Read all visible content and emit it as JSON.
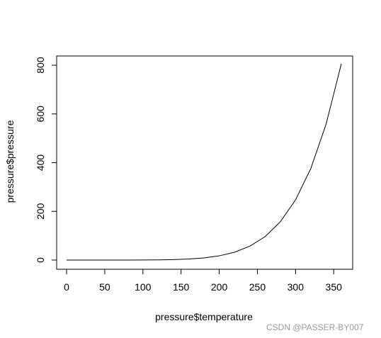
{
  "chart_data": {
    "type": "line",
    "xlabel": "pressure$temperature",
    "ylabel": "pressure$pressure",
    "xlim": [
      0,
      360
    ],
    "ylim": [
      0,
      806
    ],
    "x_ticks": [
      0,
      50,
      100,
      150,
      200,
      250,
      300,
      350
    ],
    "y_ticks": [
      0,
      200,
      400,
      600,
      800
    ],
    "grid": false,
    "x": [
      0,
      20,
      40,
      60,
      80,
      100,
      120,
      140,
      160,
      180,
      200,
      220,
      240,
      260,
      280,
      300,
      320,
      340,
      360
    ],
    "y": [
      0.0002,
      0.0012,
      0.006,
      0.03,
      0.09,
      0.27,
      0.75,
      1.85,
      4.2,
      8.8,
      17.3,
      32.1,
      57.0,
      96.0,
      157.0,
      247.0,
      376.0,
      558.0,
      806.0
    ],
    "line_color": "#000000"
  },
  "watermark": "CSDN @PASSER-BY007"
}
